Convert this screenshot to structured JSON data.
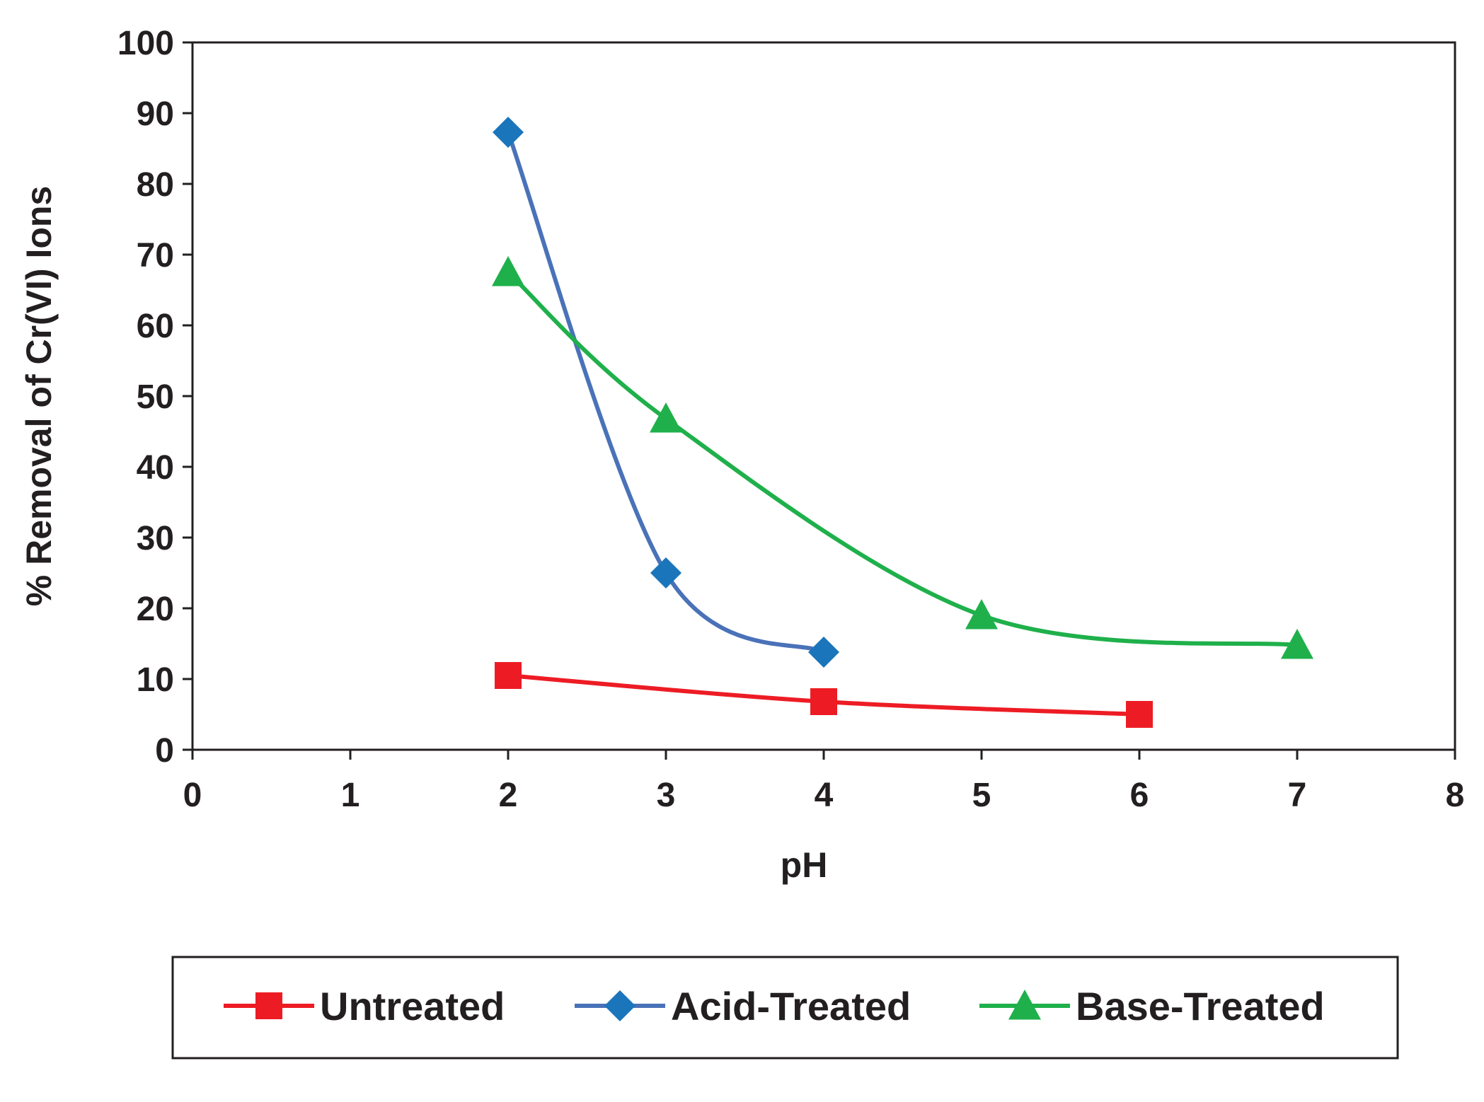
{
  "chart_data": {
    "type": "line",
    "title": "",
    "xlabel": "pH",
    "ylabel": "% Removal of Cr(VI) Ions",
    "xlim": [
      0,
      8
    ],
    "ylim": [
      0,
      100
    ],
    "x_ticks": [
      "0",
      "1",
      "2",
      "3",
      "4",
      "5",
      "6",
      "7",
      "8"
    ],
    "y_ticks": [
      "0",
      "10",
      "20",
      "30",
      "40",
      "50",
      "60",
      "70",
      "80",
      "90",
      "100"
    ],
    "grid": false,
    "smoothed": true,
    "legend_position": "bottom",
    "series": [
      {
        "name": "Untreated",
        "color": "#ed1c24",
        "marker": "square",
        "x": [
          2,
          4,
          6
        ],
        "y": [
          10.5,
          6.8,
          5.0
        ]
      },
      {
        "name": "Acid-Treated",
        "color": "#4a72b8",
        "marker_color": "#1b75bb",
        "marker": "diamond",
        "x": [
          2,
          3,
          4
        ],
        "y": [
          87.3,
          25.0,
          13.8
        ]
      },
      {
        "name": "Base-Treated",
        "color": "#1fb04b",
        "marker": "triangle",
        "x": [
          2,
          3,
          5,
          7
        ],
        "y": [
          67.5,
          46.8,
          19.0,
          14.8
        ]
      }
    ]
  }
}
